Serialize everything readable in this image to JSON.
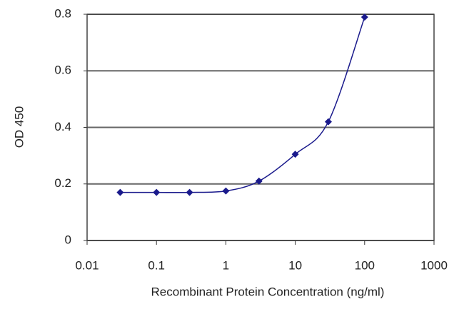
{
  "chart_data": {
    "type": "line",
    "xlabel": "Recombinant Protein Concentration (ng/ml)",
    "ylabel": "OD 450",
    "x": [
      0.03,
      0.1,
      0.3,
      1,
      3,
      10,
      30,
      100
    ],
    "series": [
      {
        "color": "#1a1a8c",
        "values": [
          0.17,
          0.17,
          0.17,
          0.175,
          0.21,
          0.305,
          0.42,
          0.79
        ]
      }
    ],
    "xlim": [
      0.01,
      1000
    ],
    "xticks": [
      0.01,
      0.1,
      1,
      10,
      100,
      1000
    ],
    "xscale": "log",
    "ylim": [
      0,
      0.8
    ],
    "yticks": [
      0,
      0.2,
      0.4,
      0.6,
      0.8
    ],
    "grid": true
  }
}
